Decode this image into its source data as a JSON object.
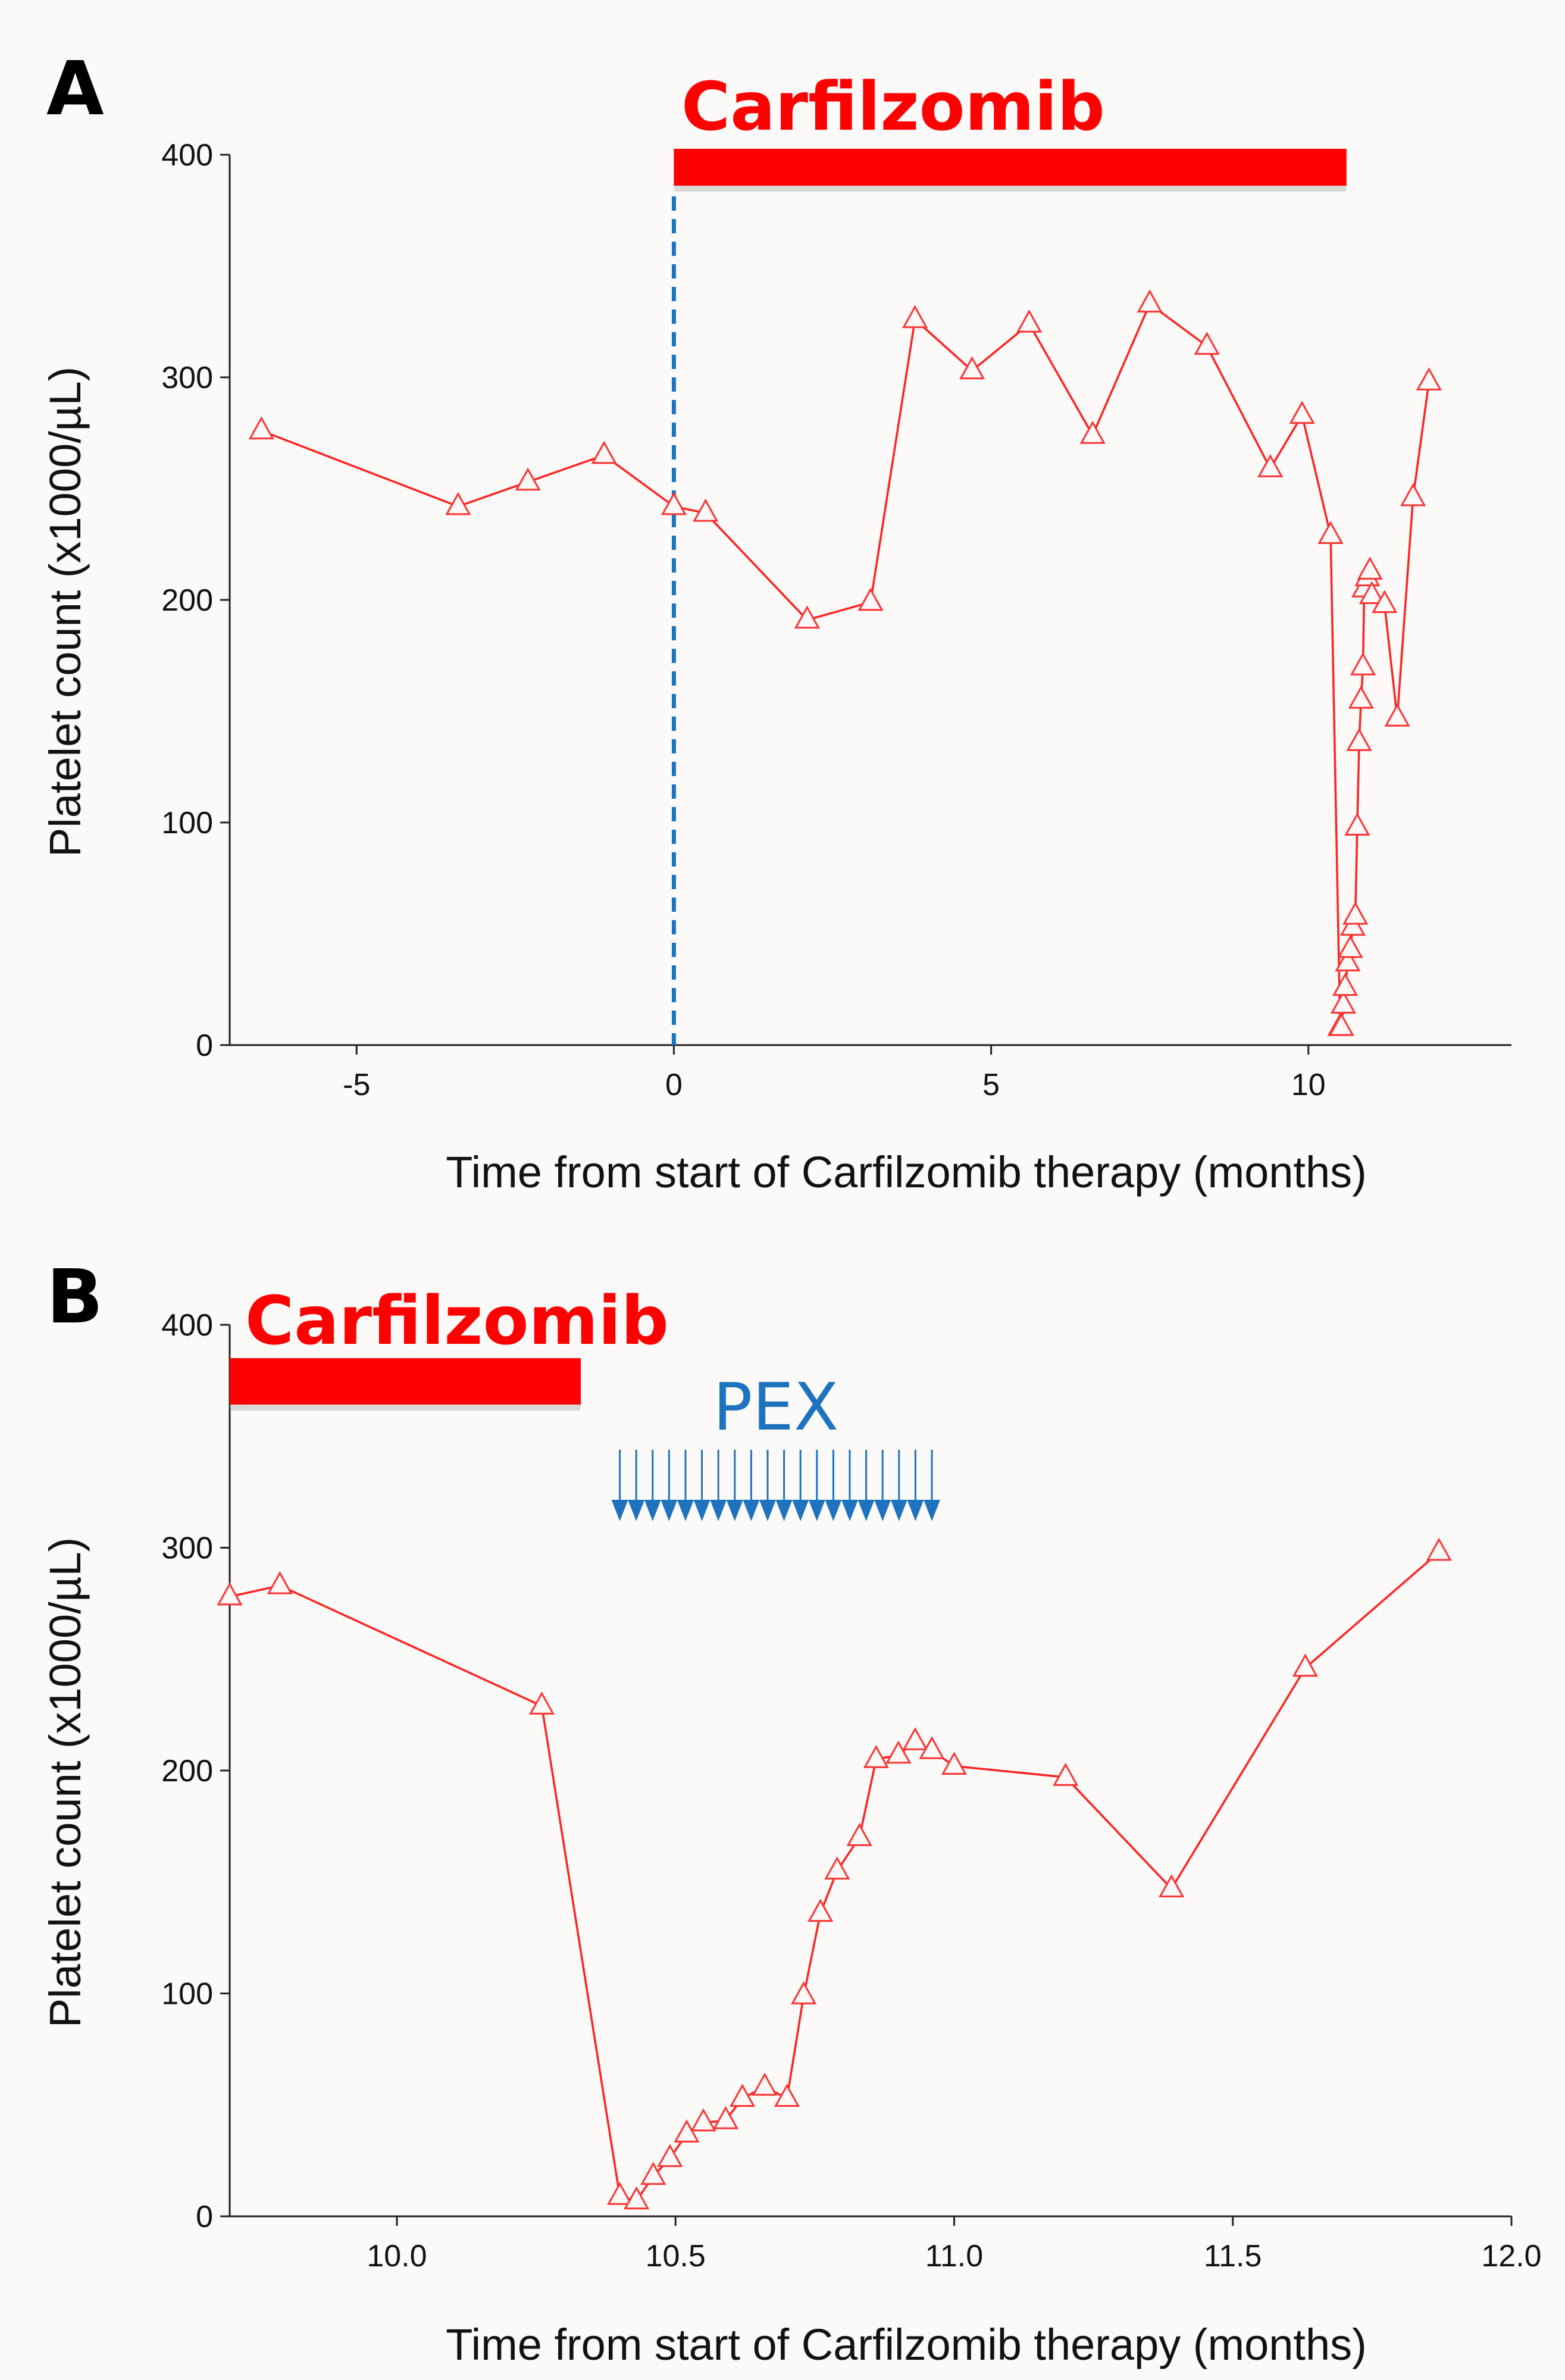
{
  "colors": {
    "series": "#ff2222",
    "carfilzomib_bar": "#ff0000",
    "pex": "#1e73be",
    "start_line": "#1e73be"
  },
  "chart_data": [
    {
      "panel": "A",
      "type": "line",
      "title": "",
      "xlabel": "Time from start of Carfilzomib therapy (months)",
      "ylabel": "Platelet count (x1000/µL)",
      "xlim": [
        -7,
        13.2
      ],
      "ylim": [
        0,
        400
      ],
      "xticks": [
        -5,
        0,
        5,
        10
      ],
      "xtick_labels": [
        "-5",
        "0",
        "5",
        "10"
      ],
      "yticks": [
        0,
        100,
        200,
        300,
        400
      ],
      "ytick_labels": [
        "0",
        "100",
        "200",
        "300",
        "400"
      ],
      "marker": "open-triangle",
      "annotations": {
        "treatment_bar": {
          "label": "Carfilzomib",
          "start": 0,
          "end": 10.6
        },
        "start_line_x": 0
      },
      "series": [
        {
          "name": "Platelet count",
          "x": [
            -6.5,
            -3.4,
            -2.3,
            -1.1,
            0,
            0.5,
            2.1,
            3.1,
            3.8,
            4.7,
            5.6,
            6.6,
            7.5,
            8.4,
            9.4,
            9.9,
            10.35,
            10.5,
            10.52,
            10.55,
            10.58,
            10.62,
            10.66,
            10.7,
            10.74,
            10.77,
            10.8,
            10.83,
            10.86,
            10.88,
            10.93,
            10.97,
            11.0,
            11.2,
            11.4,
            11.65,
            11.9
          ],
          "y": [
            276,
            242,
            253,
            265,
            242,
            239,
            191,
            199,
            326,
            303,
            324,
            274,
            333,
            314,
            259,
            283,
            229,
            8,
            8,
            18,
            26,
            37,
            43,
            53,
            58,
            98,
            136,
            155,
            170,
            205,
            210,
            213,
            202,
            198,
            147,
            246,
            298
          ]
        }
      ]
    },
    {
      "panel": "B",
      "type": "line",
      "title": "",
      "xlabel": "Time from start of Carfilzomib therapy (months)",
      "ylabel": "Platelet count (x1000/µL)",
      "xlim": [
        9.7,
        12.0
      ],
      "ylim": [
        0,
        400
      ],
      "xticks": [
        10.0,
        10.5,
        11.0,
        11.5,
        12.0
      ],
      "xtick_labels": [
        "10.0",
        "10.5",
        "11.0",
        "11.5",
        "12.0"
      ],
      "yticks": [
        0,
        100,
        200,
        300,
        400
      ],
      "ytick_labels": [
        "0",
        "100",
        "200",
        "300",
        "400"
      ],
      "marker": "open-triangle",
      "annotations": {
        "treatment_bar": {
          "label": "Carfilzomib",
          "start": 9.7,
          "end": 10.33
        },
        "pex": {
          "label": "PEX",
          "start": 10.4,
          "end": 10.96,
          "count": 20
        }
      },
      "series": [
        {
          "name": "Platelet count",
          "x": [
            9.7,
            9.79,
            10.26,
            10.4,
            10.43,
            10.46,
            10.49,
            10.52,
            10.55,
            10.59,
            10.62,
            10.66,
            10.7,
            10.73,
            10.76,
            10.79,
            10.83,
            10.86,
            10.9,
            10.93,
            10.96,
            11.0,
            11.2,
            11.39,
            11.63,
            11.87
          ],
          "y": [
            278,
            283,
            229,
            9,
            7,
            18,
            26,
            37,
            42,
            43,
            53,
            58,
            53,
            99,
            136,
            155,
            170,
            205,
            207,
            213,
            209,
            202,
            197,
            147,
            246,
            298
          ]
        }
      ]
    }
  ]
}
